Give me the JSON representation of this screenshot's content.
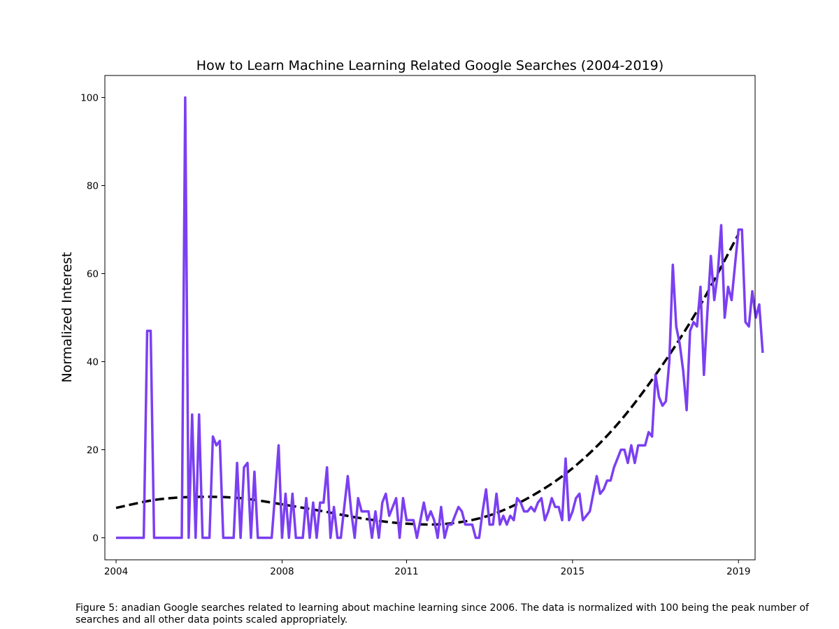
{
  "chart_data": {
    "type": "line",
    "title": "How to Learn Machine Learning Related Google Searches (2004-2019)",
    "xlabel": "",
    "ylabel": "Normalized Interest",
    "xlim": [
      2003.73,
      2019.4
    ],
    "ylim": [
      -5,
      105
    ],
    "x_ticks": [
      "2004",
      "2008",
      "2011",
      "2015",
      "2019"
    ],
    "y_ticks": [
      "0",
      "20",
      "40",
      "60",
      "80",
      "100"
    ],
    "grid": false,
    "series": [
      {
        "color": "#7b3ff2",
        "style": "solid",
        "x_start": 2004.0,
        "x_step_months": 1,
        "values": [
          0,
          0,
          0,
          0,
          0,
          0,
          0,
          0,
          0,
          47,
          47,
          0,
          0,
          0,
          0,
          0,
          0,
          0,
          0,
          0,
          100,
          0,
          28,
          0,
          28,
          0,
          0,
          0,
          23,
          21,
          22,
          0,
          0,
          0,
          0,
          17,
          0,
          16,
          17,
          0,
          15,
          0,
          0,
          0,
          0,
          0,
          10,
          21,
          0,
          10,
          0,
          10,
          0,
          0,
          0,
          9,
          0,
          8,
          0,
          8,
          8,
          16,
          0,
          7,
          0,
          0,
          7,
          14,
          6,
          0,
          9,
          6,
          6,
          6,
          0,
          6,
          0,
          8,
          10,
          5,
          7,
          9,
          0,
          9,
          4,
          4,
          4,
          0,
          4,
          8,
          4,
          6,
          4,
          0,
          7,
          0,
          3,
          3,
          5,
          7,
          6,
          3,
          3,
          3,
          0,
          0,
          6,
          11,
          3,
          3,
          10,
          3,
          5,
          3,
          5,
          4,
          9,
          8,
          6,
          6,
          7,
          6,
          8,
          9,
          4,
          6,
          9,
          7,
          7,
          4,
          18,
          4,
          6,
          9,
          10,
          4,
          5,
          6,
          10,
          14,
          10,
          11,
          13,
          13,
          16,
          18,
          20,
          20,
          17,
          21,
          17,
          21,
          21,
          21,
          24,
          23,
          37,
          32,
          30,
          31,
          40,
          62,
          48,
          44,
          38,
          29,
          47,
          49,
          48,
          57,
          37,
          51,
          64,
          54,
          60,
          71,
          50,
          57,
          54,
          62,
          70,
          70,
          49,
          48,
          56,
          50,
          53,
          42
        ]
      },
      {
        "color": "#000000",
        "style": "dashed",
        "fit": "polynomial trend",
        "x": [
          2004.0,
          2005.0,
          2006.0,
          2007.0,
          2008.0,
          2009.0,
          2010.0,
          2011.0,
          2012.0,
          2013.0,
          2014.0,
          2015.0,
          2016.0,
          2017.0,
          2018.0,
          2019.0
        ],
        "values": [
          6.8,
          8.7,
          9.3,
          9.0,
          7.6,
          6.0,
          4.3,
          3.2,
          3.2,
          5.1,
          9.4,
          15.8,
          24.9,
          37.0,
          51.5,
          69.0
        ]
      }
    ]
  },
  "caption": "Figure 5: anadian Google searches related to learning about machine learning since 2006. The data is normalized with 100 being the peak number of searches and all other data points scaled appropriately."
}
